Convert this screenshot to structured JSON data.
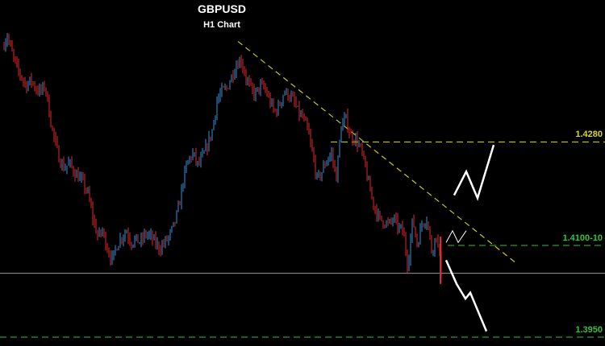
{
  "chart_data": {
    "type": "candlestick",
    "title": "GBPUSD",
    "subtitle": "H1 Chart",
    "ylim": [
      1.3935,
      1.452
    ],
    "bull_color": "#3a8fd8",
    "bear_color": "#e02a2a",
    "background": "#000000",
    "price_path": [
      1.444,
      1.446,
      1.443,
      1.4405,
      1.439,
      1.4375,
      1.4385,
      1.437,
      1.4365,
      1.4375,
      1.432,
      1.428,
      1.425,
      1.4235,
      1.4245,
      1.423,
      1.422,
      1.421,
      1.419,
      1.415,
      1.412,
      1.413,
      1.41,
      1.408,
      1.4105,
      1.412,
      1.413,
      1.411,
      1.4115,
      1.411,
      1.4125,
      1.412,
      1.411,
      1.41,
      1.411,
      1.412,
      1.414,
      1.417,
      1.422,
      1.425,
      1.426,
      1.424,
      1.4255,
      1.4275,
      1.43,
      1.435,
      1.4365,
      1.437,
      1.439,
      1.441,
      1.442,
      1.439,
      1.437,
      1.436,
      1.4375,
      1.437,
      1.435,
      1.433,
      1.434,
      1.4365,
      1.436,
      1.435,
      1.433,
      1.432,
      1.43,
      1.426,
      1.4215,
      1.423,
      1.425,
      1.426,
      1.422,
      1.4305,
      1.432,
      1.429,
      1.4285,
      1.427,
      1.424,
      1.42,
      1.417,
      1.415,
      1.4145,
      1.414,
      1.415,
      1.4135,
      1.413,
      1.407,
      1.415,
      1.4105,
      1.4145,
      1.415,
      1.4095,
      1.4125,
      1.406
    ],
    "candle_x_range": [
      4,
      548
    ],
    "horizontal_levels": [
      {
        "label": "1.4280",
        "value": 1.428,
        "color": "#d8d820",
        "style": "dashed",
        "x_start": 410
      },
      {
        "label": "1.4100-10",
        "value": 1.4105,
        "color": "#3cbe3c",
        "style": "dashed",
        "x_start": 555
      },
      {
        "label": "1.3950",
        "value": 1.395,
        "color": "#3cbe3c",
        "style": "dashed",
        "x_start": 0
      }
    ],
    "current_price_line": {
      "value": 1.4058,
      "color": "#9a9a9a"
    },
    "trendline": {
      "x1": 295,
      "y1": 1.445,
      "x2": 640,
      "y2": 1.4075,
      "color": "#c8c81a",
      "style": "dashed"
    },
    "projections": [
      {
        "name": "bullish-path",
        "color": "#ffffff",
        "width": 2.5,
        "points": [
          [
            563,
            1.419
          ],
          [
            578,
            1.423
          ],
          [
            592,
            1.4185
          ],
          [
            612,
            1.4275
          ]
        ]
      },
      {
        "name": "bearish-path",
        "color": "#ffffff",
        "width": 2.5,
        "points": [
          [
            553,
            1.408
          ],
          [
            566,
            1.404
          ],
          [
            577,
            1.4015
          ],
          [
            583,
            1.4025
          ],
          [
            603,
            1.396
          ]
        ]
      },
      {
        "name": "small-zigzag",
        "color": "#ffffff",
        "width": 1,
        "points": [
          [
            553,
            1.411
          ],
          [
            561,
            1.413
          ],
          [
            568,
            1.411
          ],
          [
            578,
            1.413
          ]
        ]
      }
    ]
  }
}
